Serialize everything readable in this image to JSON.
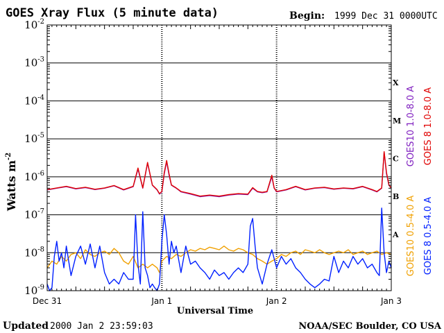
{
  "header": {
    "title": "GOES Xray Flux (5 minute data)",
    "begin_label": "Begin:",
    "begin_value": "1999 Dec 31 0000UTC"
  },
  "footer": {
    "updated_label": "Updated",
    "updated_value": "2000 Jan  2 23:59:03",
    "credit": "NOAA/SEC Boulder, CO USA"
  },
  "colors": {
    "goes10_long": "#8020c0",
    "goes8_long": "#e00000",
    "goes10_short": "#f0a000",
    "goes8_short": "#0020ff"
  },
  "chart_data": {
    "type": "line",
    "title": "GOES Xray Flux (5 minute data)",
    "xlabel": "Universal Time",
    "ylabel": "Watts m",
    "ylabel_sup": "-2",
    "y_scale": "log",
    "ylim": [
      1e-09,
      0.01
    ],
    "y_ticks": [
      {
        "base": "10",
        "exp": "-9",
        "value": 1e-09
      },
      {
        "base": "10",
        "exp": "-8",
        "value": 1e-08
      },
      {
        "base": "10",
        "exp": "-7",
        "value": 1e-07
      },
      {
        "base": "10",
        "exp": "-6",
        "value": 1e-06
      },
      {
        "base": "10",
        "exp": "-5",
        "value": 1e-05
      },
      {
        "base": "10",
        "exp": "-4",
        "value": 0.0001
      },
      {
        "base": "10",
        "exp": "-3",
        "value": 0.001
      },
      {
        "base": "10",
        "exp": "-2",
        "value": 0.01
      }
    ],
    "x_ticks": [
      "Dec 31",
      "Jan 1",
      "Jan 2",
      "Jan 3"
    ],
    "xlim_hours": [
      0,
      72
    ],
    "flare_classes": [
      {
        "label": "A",
        "value": 1e-08
      },
      {
        "label": "B",
        "value": 1e-07
      },
      {
        "label": "C",
        "value": 1e-06
      },
      {
        "label": "M",
        "value": 1e-05
      },
      {
        "label": "X",
        "value": 0.0001
      }
    ],
    "series": [
      {
        "name": "GOES10 1.0-8.0 A",
        "key": "goes10_long",
        "x": [
          0,
          2,
          4,
          6,
          8,
          10,
          12,
          14,
          16,
          18,
          19,
          20,
          21,
          22,
          23,
          23.5,
          24,
          24.5,
          25,
          25.5,
          26,
          27,
          28,
          30,
          32,
          34,
          36,
          38,
          40,
          42,
          43,
          44,
          45,
          46,
          47,
          47.5,
          48,
          50,
          52,
          54,
          56,
          58,
          60,
          62,
          64,
          66,
          68,
          69,
          70,
          70.5,
          71,
          71.5,
          72
        ],
        "y": [
          4.5e-07,
          5e-07,
          5.5e-07,
          4.8e-07,
          5.2e-07,
          4.6e-07,
          5e-07,
          5.8e-07,
          4.5e-07,
          5.5e-07,
          1.6e-06,
          5e-07,
          2.3e-06,
          6e-07,
          4.5e-07,
          3.5e-07,
          4e-07,
          1.2e-06,
          2.5e-06,
          1.1e-06,
          6e-07,
          5e-07,
          4e-07,
          3.5e-07,
          3e-07,
          3.2e-07,
          3e-07,
          3.3e-07,
          3.5e-07,
          3.4e-07,
          5e-07,
          4e-07,
          3.8e-07,
          4e-07,
          1e-06,
          5e-07,
          4e-07,
          4.5e-07,
          5.5e-07,
          4.5e-07,
          5e-07,
          5.2e-07,
          4.7e-07,
          5e-07,
          4.8e-07,
          5.5e-07,
          4.5e-07,
          4e-07,
          5e-07,
          4.5e-06,
          1.2e-06,
          6e-07,
          5e-07
        ]
      },
      {
        "name": "GOES 8 1.0-8.0 A",
        "key": "goes8_long",
        "x": [
          0,
          2,
          4,
          6,
          8,
          10,
          12,
          14,
          16,
          18,
          19,
          20,
          21,
          22,
          23,
          23.5,
          24,
          24.5,
          25,
          25.5,
          26,
          27,
          28,
          30,
          32,
          34,
          36,
          38,
          40,
          42,
          43,
          44,
          45,
          46,
          47,
          47.5,
          48,
          50,
          52,
          54,
          56,
          58,
          60,
          62,
          64,
          66,
          68,
          69,
          70,
          70.5,
          71,
          71.5,
          72
        ],
        "y": [
          4.6e-07,
          5.1e-07,
          5.6e-07,
          4.9e-07,
          5.3e-07,
          4.7e-07,
          5.1e-07,
          5.9e-07,
          4.6e-07,
          5.6e-07,
          1.7e-06,
          5.1e-07,
          2.4e-06,
          6.1e-07,
          4.6e-07,
          3.6e-07,
          4.1e-07,
          1.3e-06,
          2.7e-06,
          1.2e-06,
          6.1e-07,
          5.1e-07,
          4.1e-07,
          3.6e-07,
          3.1e-07,
          3.3e-07,
          3.1e-07,
          3.4e-07,
          3.6e-07,
          3.5e-07,
          5.2e-07,
          4.1e-07,
          3.9e-07,
          4.1e-07,
          1.1e-06,
          5.1e-07,
          4.1e-07,
          4.6e-07,
          5.6e-07,
          4.6e-07,
          5.1e-07,
          5.3e-07,
          4.8e-07,
          5.1e-07,
          4.9e-07,
          5.6e-07,
          4.6e-07,
          4.1e-07,
          5.1e-07,
          4.6e-06,
          1.3e-06,
          6.1e-07,
          5.1e-07
        ]
      },
      {
        "name": "GOES10 0.5-4.0 A",
        "key": "goes10_short",
        "x": [
          0,
          1,
          2,
          3,
          4,
          5,
          6,
          7,
          8,
          9,
          10,
          11,
          12,
          13,
          14,
          15,
          16,
          17,
          18,
          19,
          20,
          21,
          22,
          23,
          23.5,
          24,
          25,
          26,
          27,
          28,
          29,
          30,
          31,
          32,
          33,
          34,
          35,
          36,
          37,
          38,
          39,
          40,
          41,
          42,
          43,
          44,
          45,
          46,
          47,
          48,
          49,
          50,
          51,
          52,
          53,
          54,
          55,
          56,
          57,
          58,
          59,
          60,
          61,
          62,
          63,
          64,
          65,
          66,
          67,
          68,
          69,
          70,
          71,
          72
        ],
        "y": [
          4e-09,
          6e-09,
          5e-09,
          8e-09,
          6e-09,
          9e-09,
          1e-08,
          7e-09,
          1.2e-08,
          9e-09,
          8e-09,
          1e-08,
          1.1e-08,
          9e-09,
          1.3e-08,
          1e-08,
          6e-09,
          5e-09,
          8e-09,
          4e-09,
          5e-09,
          4e-09,
          5e-09,
          4e-09,
          3e-09,
          6e-09,
          8e-09,
          7e-09,
          9e-09,
          8e-09,
          1e-08,
          1.2e-08,
          1.1e-08,
          1.3e-08,
          1.2e-08,
          1.4e-08,
          1.3e-08,
          1.2e-08,
          1.5e-08,
          1.2e-08,
          1.1e-08,
          1.3e-08,
          1.2e-08,
          1e-08,
          9e-09,
          7e-09,
          6e-09,
          5e-09,
          6e-09,
          7e-09,
          9e-09,
          8e-09,
          1e-08,
          1.1e-08,
          9e-09,
          1.2e-08,
          1.1e-08,
          1e-08,
          1.2e-08,
          1e-08,
          9e-09,
          1e-08,
          1.1e-08,
          1e-08,
          1.2e-08,
          9e-09,
          1e-08,
          1.1e-08,
          9e-09,
          1e-08,
          1.1e-08,
          9e-09,
          1e-08,
          9e-09
        ]
      },
      {
        "name": "GOES 8 0.5-4.0 A",
        "key": "goes8_short",
        "x": [
          0,
          0.5,
          1,
          1.5,
          2,
          2.5,
          3,
          3.5,
          4,
          4.5,
          5,
          6,
          7,
          8,
          9,
          10,
          11,
          12,
          13,
          14,
          15,
          16,
          17,
          18,
          18.5,
          19,
          19.5,
          20,
          20.5,
          21,
          21.5,
          22,
          22.5,
          23,
          23.5,
          24,
          24.5,
          25,
          25.5,
          26,
          26.5,
          27,
          28,
          29,
          30,
          31,
          32,
          33,
          34,
          35,
          36,
          37,
          38,
          39,
          40,
          41,
          42,
          42.5,
          43,
          43.5,
          44,
          45,
          46,
          47,
          48,
          49,
          50,
          51,
          52,
          53,
          54,
          55,
          56,
          57,
          58,
          59,
          60,
          61,
          62,
          63,
          64,
          65,
          66,
          67,
          68,
          69,
          69.5,
          70,
          70.5,
          71,
          71.5,
          72
        ],
        "y": [
          1.5e-09,
          1e-09,
          1.2e-09,
          8e-09,
          2e-08,
          6e-09,
          1e-08,
          4e-09,
          1.5e-08,
          6e-09,
          2.5e-09,
          8e-09,
          1.5e-08,
          5e-09,
          1.7e-08,
          4e-09,
          1.5e-08,
          3e-09,
          1.5e-09,
          2e-09,
          1.5e-09,
          3e-09,
          2e-09,
          2e-09,
          1e-07,
          5e-09,
          1.5e-09,
          1.2e-07,
          4e-09,
          2.5e-09,
          1.2e-09,
          1.5e-09,
          1.2e-09,
          1e-09,
          1.5e-09,
          2e-08,
          1e-07,
          3e-08,
          5e-09,
          2e-08,
          1e-08,
          1.5e-08,
          3e-09,
          1.5e-08,
          5e-09,
          6e-09,
          4e-09,
          3e-09,
          2e-09,
          3.5e-09,
          2.5e-09,
          3e-09,
          2e-09,
          3e-09,
          4e-09,
          3e-09,
          5e-09,
          5e-08,
          8e-08,
          1.5e-08,
          4e-09,
          1.5e-09,
          5e-09,
          1.2e-08,
          4e-09,
          8e-09,
          5e-09,
          7e-09,
          4e-09,
          3e-09,
          2e-09,
          1.5e-09,
          1.2e-09,
          1.5e-09,
          2e-09,
          1.8e-09,
          8e-09,
          3e-09,
          6e-09,
          4e-09,
          8e-09,
          5e-09,
          7e-09,
          4e-09,
          5e-09,
          3e-09,
          2.5e-09,
          1.5e-07,
          1e-08,
          3e-09,
          6e-09,
          4e-09
        ]
      }
    ]
  }
}
